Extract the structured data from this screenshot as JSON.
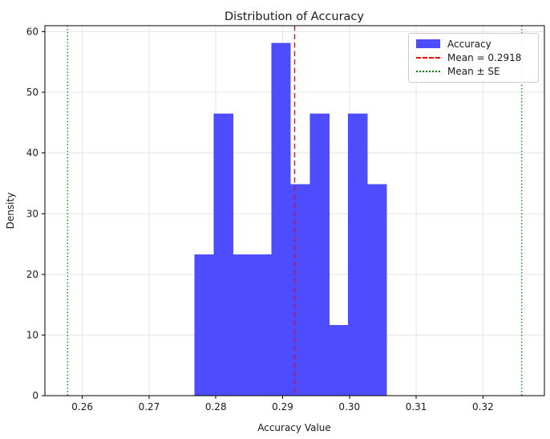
{
  "chart_data": {
    "type": "bar",
    "histogram": true,
    "title": "Distribution of Accuracy",
    "xlabel": "Accuracy Value",
    "ylabel": "Density",
    "xlim": [
      0.2544,
      0.3292
    ],
    "ylim": [
      0,
      61
    ],
    "x_ticks": [
      0.26,
      0.27,
      0.28,
      0.29,
      0.3,
      0.31,
      0.32
    ],
    "x_tick_labels": [
      "0.26",
      "0.27",
      "0.28",
      "0.29",
      "0.30",
      "0.31",
      "0.32"
    ],
    "y_ticks": [
      0,
      10,
      20,
      30,
      40,
      50,
      60
    ],
    "y_tick_labels": [
      "0",
      "10",
      "20",
      "30",
      "40",
      "50",
      "60"
    ],
    "grid": true,
    "legend_position": "upper right",
    "bins": {
      "edges": [
        0.2768,
        0.2797,
        0.2826,
        0.2855,
        0.2883,
        0.2912,
        0.2941,
        0.297,
        0.2998,
        0.3027,
        0.3056
      ],
      "densities": [
        23.26,
        46.51,
        23.26,
        23.26,
        58.14,
        34.88,
        46.51,
        11.63,
        46.51,
        34.88
      ],
      "counts": [
        2,
        4,
        2,
        2,
        5,
        3,
        4,
        1,
        4,
        3
      ]
    },
    "mean": 0.2918,
    "se": 0.034,
    "mean_minus_se": 0.2578,
    "mean_plus_se": 0.3258,
    "legend": [
      {
        "label": "Accuracy",
        "swatch": "patch",
        "color": "#4d4dff"
      },
      {
        "label": "Mean = 0.2918",
        "swatch": "dashed",
        "color": "#ff0000"
      },
      {
        "label": "Mean ± SE",
        "swatch": "dotted",
        "color": "#008000"
      }
    ],
    "colors": {
      "bar_fill": "#4d4dff",
      "mean_line": "#ff0000",
      "se_line": "#008000",
      "grid_line": "#e6e6e6",
      "spine": "#000000",
      "text": "#1a1a1a",
      "legend_border": "#cccccc"
    }
  }
}
